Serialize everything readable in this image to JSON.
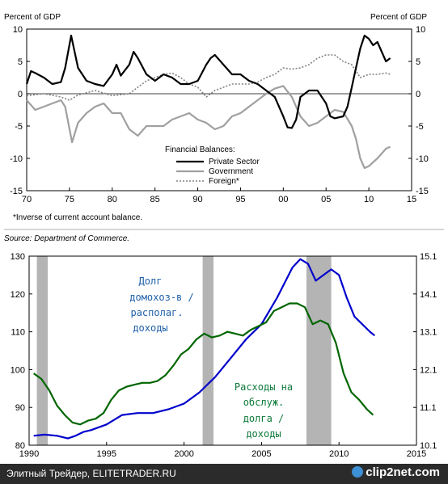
{
  "chart_data": [
    {
      "type": "line",
      "ylabel_left": "Percent of GDP",
      "ylabel_right": "Percent of GDP",
      "x_ticks": [
        "70",
        "75",
        "80",
        "85",
        "90",
        "95",
        "00",
        "05",
        "10",
        "15"
      ],
      "y_ticks": [
        "10",
        "5",
        "0",
        "-5",
        "-10",
        "-15"
      ],
      "xlim": [
        1970,
        2015
      ],
      "ylim": [
        -15,
        10
      ],
      "legend_title": "Financial Balances:",
      "legend_placement": "bottom-center",
      "footnote": "*Inverse of current account balance.",
      "source": "Source: Department of Commerce.",
      "series": [
        {
          "name": "Private Sector",
          "color": "#000000",
          "style": "solid",
          "points": [
            [
              1970,
              1.5
            ],
            [
              1970.5,
              3.5
            ],
            [
              1971,
              3.2
            ],
            [
              1972,
              2.5
            ],
            [
              1973,
              1.5
            ],
            [
              1974,
              1.8
            ],
            [
              1974.5,
              4
            ],
            [
              1975.2,
              9
            ],
            [
              1976,
              4
            ],
            [
              1977,
              2
            ],
            [
              1978,
              1.5
            ],
            [
              1979,
              1.2
            ],
            [
              1980,
              3
            ],
            [
              1980.5,
              4.5
            ],
            [
              1981,
              2.8
            ],
            [
              1982,
              4.5
            ],
            [
              1982.5,
              6.5
            ],
            [
              1983,
              5.5
            ],
            [
              1984,
              3
            ],
            [
              1985,
              2
            ],
            [
              1986,
              3
            ],
            [
              1987,
              2.5
            ],
            [
              1988,
              1.5
            ],
            [
              1989,
              1.5
            ],
            [
              1990,
              2
            ],
            [
              1991,
              4.5
            ],
            [
              1991.5,
              5.5
            ],
            [
              1992,
              6
            ],
            [
              1993,
              4.5
            ],
            [
              1994,
              3
            ],
            [
              1995,
              3
            ],
            [
              1996,
              2
            ],
            [
              1997,
              1.5
            ],
            [
              1998,
              0.5
            ],
            [
              1999,
              -0.5
            ],
            [
              2000,
              -3.5
            ],
            [
              2000.5,
              -5.2
            ],
            [
              2001,
              -5.3
            ],
            [
              2001.5,
              -4
            ],
            [
              2002,
              -0.5
            ],
            [
              2003,
              0.5
            ],
            [
              2004,
              0.5
            ],
            [
              2005,
              -1.5
            ],
            [
              2005.5,
              -3.5
            ],
            [
              2006,
              -3.8
            ],
            [
              2007,
              -3.5
            ],
            [
              2007.5,
              -2
            ],
            [
              2008,
              1
            ],
            [
              2008.5,
              4
            ],
            [
              2009,
              7
            ],
            [
              2009.5,
              9
            ],
            [
              2010,
              8.5
            ],
            [
              2010.5,
              7.5
            ],
            [
              2011,
              8
            ],
            [
              2011.5,
              6.5
            ],
            [
              2012,
              5
            ],
            [
              2012.5,
              5.5
            ]
          ]
        },
        {
          "name": "Government",
          "color": "#a0a0a0",
          "style": "solid",
          "points": [
            [
              1970,
              -1
            ],
            [
              1971,
              -2.5
            ],
            [
              1972,
              -2
            ],
            [
              1973,
              -1.5
            ],
            [
              1974,
              -1
            ],
            [
              1974.5,
              -2
            ],
            [
              1975.3,
              -7.5
            ],
            [
              1976,
              -4.5
            ],
            [
              1977,
              -3
            ],
            [
              1978,
              -2
            ],
            [
              1979,
              -1.5
            ],
            [
              1980,
              -3
            ],
            [
              1981,
              -3
            ],
            [
              1982,
              -5.5
            ],
            [
              1983,
              -6.5
            ],
            [
              1984,
              -5
            ],
            [
              1985,
              -5
            ],
            [
              1986,
              -5
            ],
            [
              1987,
              -4
            ],
            [
              1988,
              -3.5
            ],
            [
              1989,
              -3
            ],
            [
              1990,
              -4
            ],
            [
              1991,
              -4.5
            ],
            [
              1992,
              -5.5
            ],
            [
              1993,
              -5
            ],
            [
              1994,
              -3.5
            ],
            [
              1995,
              -3
            ],
            [
              1996,
              -2
            ],
            [
              1997,
              -1
            ],
            [
              1998,
              0
            ],
            [
              1999,
              0.8
            ],
            [
              2000,
              1.2
            ],
            [
              2001,
              -0.5
            ],
            [
              2002,
              -3.5
            ],
            [
              2003,
              -5
            ],
            [
              2004,
              -4.5
            ],
            [
              2005,
              -3.5
            ],
            [
              2006,
              -2.5
            ],
            [
              2007,
              -2.8
            ],
            [
              2008,
              -5
            ],
            [
              2008.5,
              -7
            ],
            [
              2009,
              -10
            ],
            [
              2009.5,
              -11.5
            ],
            [
              2010,
              -11.2
            ],
            [
              2011,
              -10
            ],
            [
              2012,
              -8.5
            ],
            [
              2012.5,
              -8.2
            ]
          ]
        },
        {
          "name": "Foreign*",
          "color": "#808080",
          "style": "dotted",
          "points": [
            [
              1970,
              -0.3
            ],
            [
              1972,
              0
            ],
            [
              1974,
              -0.5
            ],
            [
              1975,
              -1
            ],
            [
              1976,
              -0.2
            ],
            [
              1978,
              0.5
            ],
            [
              1980,
              -0.3
            ],
            [
              1982,
              0
            ],
            [
              1984,
              2
            ],
            [
              1985,
              2.5
            ],
            [
              1986,
              3
            ],
            [
              1987,
              3.2
            ],
            [
              1988,
              2.5
            ],
            [
              1989,
              1.5
            ],
            [
              1990,
              1
            ],
            [
              1991,
              -0.5
            ],
            [
              1992,
              0.5
            ],
            [
              1993,
              1
            ],
            [
              1994,
              1.5
            ],
            [
              1995,
              1.5
            ],
            [
              1996,
              1.5
            ],
            [
              1997,
              1.8
            ],
            [
              1998,
              2.5
            ],
            [
              1999,
              3
            ],
            [
              2000,
              4
            ],
            [
              2001,
              3.8
            ],
            [
              2002,
              4
            ],
            [
              2003,
              4.5
            ],
            [
              2004,
              5.5
            ],
            [
              2005,
              6
            ],
            [
              2006,
              6
            ],
            [
              2007,
              5
            ],
            [
              2008,
              4.5
            ],
            [
              2009,
              2.5
            ],
            [
              2010,
              3
            ],
            [
              2011,
              3
            ],
            [
              2012,
              3.2
            ],
            [
              2012.5,
              3
            ]
          ]
        }
      ]
    },
    {
      "type": "line",
      "x_ticks": [
        "1990",
        "1995",
        "2000",
        "2005",
        "2010",
        "2015"
      ],
      "y_ticks_left": [
        "130",
        "120",
        "110",
        "100",
        "90",
        "80"
      ],
      "y_ticks_right": [
        "15.1",
        "14.1",
        "13.1",
        "12.1",
        "11.1",
        "10.1"
      ],
      "xlim": [
        1990,
        2015
      ],
      "ylim_left": [
        80,
        130
      ],
      "ylim_right": [
        10.1,
        15.1
      ],
      "recessions": [
        [
          1990.5,
          1991.2
        ],
        [
          2001.2,
          2001.9
        ],
        [
          2007.9,
          2009.5
        ]
      ],
      "annotations": {
        "debt": [
          "Долг",
          "домохоз-в /",
          "располаг.",
          "доходы"
        ],
        "service": [
          "Расходы на",
          "обслуж.",
          "долга /",
          "доходы"
        ]
      },
      "series": [
        {
          "name": "Долг домохоз-в / располаг. доходы",
          "axis": "left",
          "color": "#0000cc",
          "points": [
            [
              1990.3,
              82.5
            ],
            [
              1991,
              82.8
            ],
            [
              1991.8,
              82.5
            ],
            [
              1992.5,
              81.8
            ],
            [
              1993,
              82.5
            ],
            [
              1993.5,
              83.5
            ],
            [
              1994,
              84
            ],
            [
              1995,
              85.5
            ],
            [
              1996,
              88
            ],
            [
              1997,
              88.5
            ],
            [
              1998,
              88.5
            ],
            [
              1999,
              89.5
            ],
            [
              2000,
              91
            ],
            [
              2001,
              94
            ],
            [
              2001.5,
              96
            ],
            [
              2002,
              98
            ],
            [
              2003,
              103
            ],
            [
              2004,
              108
            ],
            [
              2005,
              112
            ],
            [
              2006,
              119
            ],
            [
              2007,
              127
            ],
            [
              2007.5,
              129.2
            ],
            [
              2008,
              128
            ],
            [
              2008.5,
              123.5
            ],
            [
              2009,
              125
            ],
            [
              2009.5,
              126.5
            ],
            [
              2010,
              125
            ],
            [
              2010.5,
              119
            ],
            [
              2011,
              114
            ],
            [
              2011.5,
              112
            ],
            [
              2012,
              110
            ],
            [
              2012.3,
              109
            ]
          ]
        },
        {
          "name": "Расходы на обслуж. долга / доходы",
          "axis": "right",
          "color": "#006600",
          "points": [
            [
              1990.3,
              12.0
            ],
            [
              1990.8,
              11.85
            ],
            [
              1991.3,
              11.55
            ],
            [
              1991.8,
              11.15
            ],
            [
              1992.3,
              10.9
            ],
            [
              1992.8,
              10.7
            ],
            [
              1993.3,
              10.65
            ],
            [
              1993.8,
              10.75
            ],
            [
              1994.3,
              10.8
            ],
            [
              1994.8,
              10.95
            ],
            [
              1995.3,
              11.3
            ],
            [
              1995.8,
              11.55
            ],
            [
              1996.3,
              11.65
            ],
            [
              1996.8,
              11.7
            ],
            [
              1997.3,
              11.75
            ],
            [
              1997.8,
              11.75
            ],
            [
              1998.3,
              11.8
            ],
            [
              1998.8,
              11.95
            ],
            [
              1999.3,
              12.2
            ],
            [
              1999.8,
              12.5
            ],
            [
              2000.3,
              12.65
            ],
            [
              2000.8,
              12.9
            ],
            [
              2001.3,
              13.05
            ],
            [
              2001.8,
              12.95
            ],
            [
              2002.3,
              13.0
            ],
            [
              2002.8,
              13.1
            ],
            [
              2003.3,
              13.05
            ],
            [
              2003.8,
              13.0
            ],
            [
              2004.3,
              13.15
            ],
            [
              2004.8,
              13.25
            ],
            [
              2005.3,
              13.35
            ],
            [
              2005.8,
              13.65
            ],
            [
              2006.3,
              13.75
            ],
            [
              2006.8,
              13.85
            ],
            [
              2007.3,
              13.85
            ],
            [
              2007.8,
              13.75
            ],
            [
              2008.3,
              13.3
            ],
            [
              2008.8,
              13.4
            ],
            [
              2009.3,
              13.3
            ],
            [
              2009.8,
              12.8
            ],
            [
              2010.3,
              12.0
            ],
            [
              2010.8,
              11.5
            ],
            [
              2011.3,
              11.3
            ],
            [
              2011.8,
              11.05
            ],
            [
              2012.2,
              10.9
            ]
          ]
        }
      ]
    }
  ],
  "footer": {
    "left": "Элитный Трейдер, ELITETRADER.RU",
    "right": "clip2net.com"
  }
}
